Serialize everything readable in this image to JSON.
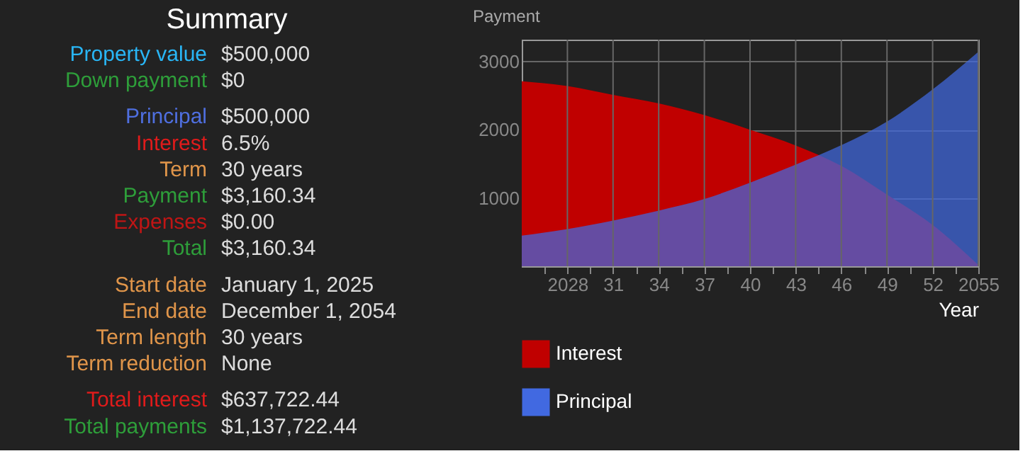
{
  "chart_data": [
    {
      "type": "other",
      "title": "Summary",
      "annotations": [
        "Property value",
        "$500,000",
        "Down payment",
        "$0",
        "Principal",
        "$500,000",
        "Interest",
        "6.5%",
        "Term",
        "30 years",
        "Payment",
        "$3,160.34",
        "Expenses",
        "$0.00",
        "Total",
        "$3,160.34",
        "Start date",
        "January 1, 2025",
        "End date",
        "December 1, 2054",
        "Term length",
        "30 years",
        "Term reduction",
        "None",
        "Total interest",
        "$637,722.44",
        "Total payments",
        "$1,137,722.44"
      ],
      "colors": [
        "#29b6f6",
        "#2e9e3a",
        "#4f6fe0",
        "#e01b1b",
        "#e0954a",
        "#2e9e3a",
        "#c01515",
        "#2e9e3a",
        "#e0954a",
        "#e0954a",
        "#e0954a",
        "#e0954a",
        "#e01b1b",
        "#2e9e3a"
      ]
    },
    {
      "type": "area",
      "ylabel": "Payment",
      "xlabel": "Year",
      "x": [
        2025,
        2028,
        2031,
        2034,
        2037,
        2040,
        2043,
        2046,
        2049,
        2052,
        2055
      ],
      "series": [
        {
          "name": "Interest",
          "color": "#c00000",
          "values": [
            2710,
            2640,
            2510,
            2385,
            2215,
            2000,
            1770,
            1470,
            1050,
            605,
            20
          ]
        },
        {
          "name": "Principal",
          "color": "#4169e1",
          "values": [
            450,
            545,
            670,
            815,
            985,
            1225,
            1490,
            1775,
            2120,
            2590,
            3140
          ]
        }
      ],
      "xlim": [
        2025,
        2055
      ],
      "xticks": [
        {
          "value": 2026.5,
          "label": null
        },
        2028,
        {
          "value": 2029.5,
          "label": null
        },
        {
          "value": 2031,
          "label": "31"
        },
        {
          "value": 2032.5,
          "label": null
        },
        {
          "value": 2034,
          "label": "34"
        },
        {
          "value": 2035.5,
          "label": null
        },
        {
          "value": 2037,
          "label": "37"
        },
        {
          "value": 2038.5,
          "label": null
        },
        {
          "value": 2040,
          "label": "40"
        },
        {
          "value": 2041.5,
          "label": null
        },
        {
          "value": 2043,
          "label": "43"
        },
        {
          "value": 2044.5,
          "label": null
        },
        {
          "value": 2046,
          "label": "46"
        },
        {
          "value": 2047.5,
          "label": null
        },
        {
          "value": 2049,
          "label": "49"
        },
        {
          "value": 2050.5,
          "label": null
        },
        {
          "value": 2052,
          "label": "52"
        },
        {
          "value": 2053.5,
          "label": null
        },
        2055
      ],
      "ylim": [
        0,
        3320
      ],
      "yticks": [
        1000,
        2000,
        3000
      ],
      "grid": true,
      "legend": "bottom left"
    }
  ]
}
